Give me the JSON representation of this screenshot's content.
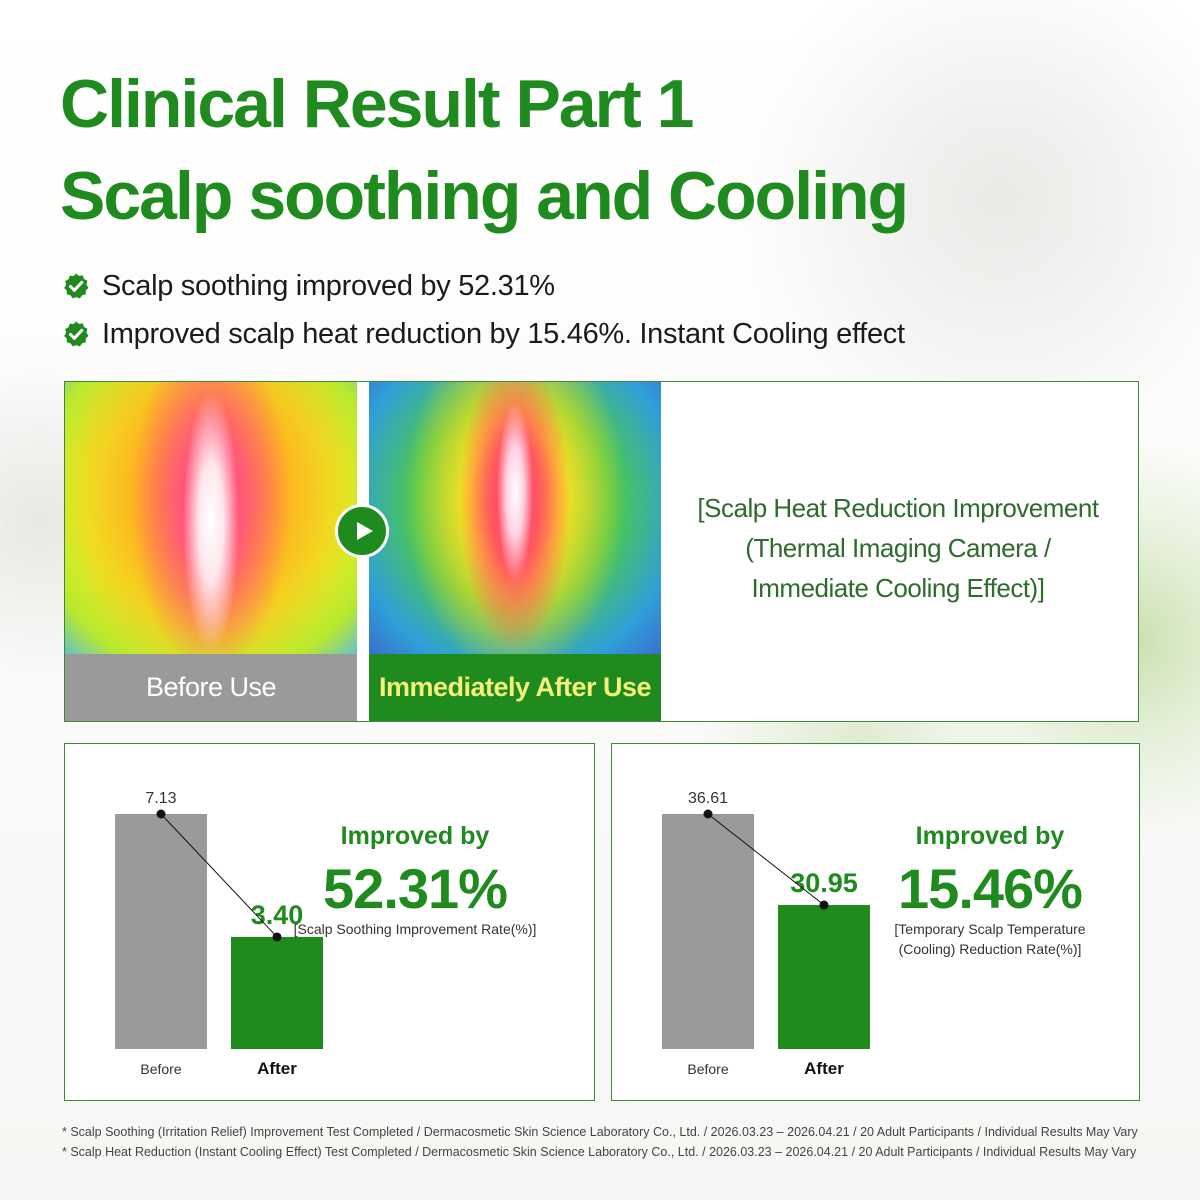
{
  "title": {
    "line1": "Clinical Result Part 1",
    "line2": "Scalp soothing and Cooling"
  },
  "bullets": [
    {
      "text": "Scalp soothing improved by 52.31%",
      "icon": "check-badge-icon"
    },
    {
      "text": "Improved scalp heat reduction by 15.46%. Instant Cooling effect",
      "icon": "check-badge-icon"
    }
  ],
  "thermal": {
    "before_label": "Before Use",
    "after_label": "Immediately After Use",
    "play_icon": "play-icon",
    "caption_lines": [
      "[Scalp Heat Reduction Improvement",
      "(Thermal Imaging Camera /",
      "Immediate Cooling Effect)]"
    ]
  },
  "metrics": [
    {
      "improved_label": "Improved by",
      "improved_value": "52.31%",
      "caption_lines": [
        "[Scalp Soothing Improvement Rate(%)]"
      ]
    },
    {
      "improved_label": "Improved by",
      "improved_value": "15.46%",
      "caption_lines": [
        "[Temporary Scalp Temperature",
        "(Cooling) Reduction Rate(%)]"
      ]
    }
  ],
  "chart_data": [
    {
      "type": "bar",
      "categories": [
        "Before",
        "After"
      ],
      "values": [
        7.13,
        3.4
      ],
      "value_labels": [
        "7.13",
        "3.40"
      ],
      "ylim": [
        0,
        7.13
      ],
      "colors": [
        "#9a9a9a",
        "#1f8a1e"
      ],
      "connector": true
    },
    {
      "type": "bar",
      "categories": [
        "Before",
        "After"
      ],
      "values": [
        36.61,
        30.95
      ],
      "value_labels": [
        "36.61",
        "30.95"
      ],
      "ylim": [
        22.0,
        36.61
      ],
      "colors": [
        "#9a9a9a",
        "#1f8a1e"
      ],
      "connector": true
    }
  ],
  "footnotes": [
    "* Scalp Soothing (Irritation Relief) Improvement Test Completed / Dermacosmetic Skin Science Laboratory Co., Ltd. / 2026.03.23 – 2026.04.21 / 20 Adult Participants / Individual Results May Vary",
    "* Scalp Heat Reduction (Instant Cooling Effect) Test Completed / Dermacosmetic Skin Science Laboratory Co., Ltd. / 2026.03.23 – 2026.04.21 / 20 Adult Participants / Individual Results May Vary"
  ],
  "colors": {
    "brand_green": "#1f8a1e",
    "label_yellow": "#f5f07a",
    "bar_gray": "#9a9a9a"
  }
}
